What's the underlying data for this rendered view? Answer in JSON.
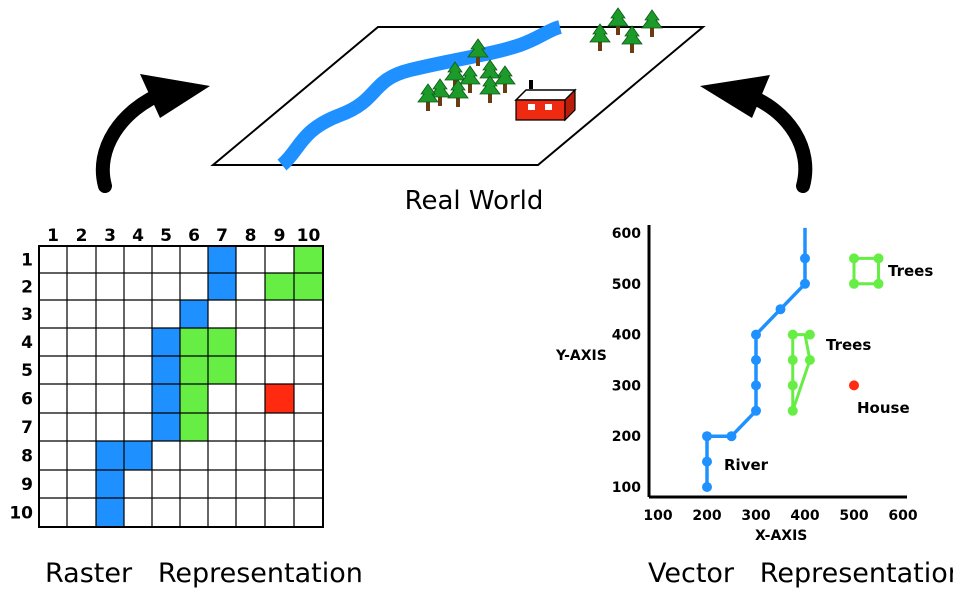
{
  "real_world": {
    "label": "Real World",
    "colors": {
      "river": "#1e90ff",
      "tree": "#1c9a2a",
      "house": "#ee2a10"
    }
  },
  "raster": {
    "caption": "Raster   Representation",
    "col_labels": [
      "1",
      "2",
      "3",
      "4",
      "5",
      "6",
      "7",
      "8",
      "9",
      "10"
    ],
    "row_labels": [
      "1",
      "2",
      "3",
      "4",
      "5",
      "6",
      "7",
      "8",
      "9",
      "10"
    ],
    "colors": {
      "river": "#1e90ff",
      "trees": "#66ee44",
      "house": "#ff2a10"
    },
    "cells": [
      {
        "row": 1,
        "col": 7,
        "type": "river"
      },
      {
        "row": 1,
        "col": 10,
        "type": "trees"
      },
      {
        "row": 2,
        "col": 7,
        "type": "river"
      },
      {
        "row": 2,
        "col": 9,
        "type": "trees"
      },
      {
        "row": 2,
        "col": 10,
        "type": "trees"
      },
      {
        "row": 3,
        "col": 6,
        "type": "river"
      },
      {
        "row": 4,
        "col": 5,
        "type": "river"
      },
      {
        "row": 4,
        "col": 6,
        "type": "trees"
      },
      {
        "row": 4,
        "col": 7,
        "type": "trees"
      },
      {
        "row": 5,
        "col": 5,
        "type": "river"
      },
      {
        "row": 5,
        "col": 6,
        "type": "trees"
      },
      {
        "row": 5,
        "col": 7,
        "type": "trees"
      },
      {
        "row": 6,
        "col": 5,
        "type": "river"
      },
      {
        "row": 6,
        "col": 6,
        "type": "trees"
      },
      {
        "row": 6,
        "col": 9,
        "type": "house"
      },
      {
        "row": 7,
        "col": 5,
        "type": "river"
      },
      {
        "row": 7,
        "col": 6,
        "type": "trees"
      },
      {
        "row": 8,
        "col": 3,
        "type": "river"
      },
      {
        "row": 8,
        "col": 4,
        "type": "river"
      },
      {
        "row": 9,
        "col": 3,
        "type": "river"
      },
      {
        "row": 10,
        "col": 3,
        "type": "river"
      }
    ]
  },
  "vector": {
    "caption": "Vector   Representation",
    "xlabel": "X-AXIS",
    "ylabel": "Y-AXIS",
    "x_ticks": [
      100,
      200,
      300,
      400,
      500,
      600
    ],
    "y_ticks": [
      100,
      200,
      300,
      400,
      500,
      600
    ],
    "xlim": [
      100,
      600
    ],
    "ylim": [
      100,
      600
    ],
    "colors": {
      "river": "#1e90ff",
      "trees": "#66ee44",
      "house": "#ff2a10"
    },
    "river": {
      "label": "River",
      "points": [
        [
          200,
          100
        ],
        [
          200,
          150
        ],
        [
          200,
          200
        ],
        [
          250,
          200
        ],
        [
          300,
          250
        ],
        [
          300,
          300
        ],
        [
          300,
          350
        ],
        [
          300,
          400
        ],
        [
          350,
          450
        ],
        [
          400,
          500
        ],
        [
          400,
          550
        ],
        [
          400,
          610
        ]
      ],
      "vertices": [
        [
          200,
          100
        ],
        [
          200,
          150
        ],
        [
          200,
          200
        ],
        [
          250,
          200
        ],
        [
          300,
          250
        ],
        [
          300,
          300
        ],
        [
          300,
          350
        ],
        [
          300,
          400
        ],
        [
          350,
          450
        ],
        [
          400,
          500
        ],
        [
          400,
          550
        ]
      ]
    },
    "trees_north": {
      "label": "Trees",
      "points": [
        [
          500,
          550
        ],
        [
          550,
          550
        ],
        [
          550,
          500
        ],
        [
          500,
          500
        ]
      ]
    },
    "trees_south": {
      "label": "Trees",
      "points": [
        [
          400,
          400
        ],
        [
          375,
          400
        ],
        [
          375,
          350
        ],
        [
          375,
          300
        ],
        [
          375,
          250
        ],
        [
          410,
          350
        ],
        [
          400,
          400
        ]
      ],
      "vertices": [
        [
          375,
          400
        ],
        [
          410,
          400
        ],
        [
          375,
          350
        ],
        [
          375,
          300
        ],
        [
          375,
          250
        ],
        [
          410,
          350
        ]
      ]
    },
    "house": {
      "label": "House",
      "point": [
        500,
        300
      ]
    }
  }
}
